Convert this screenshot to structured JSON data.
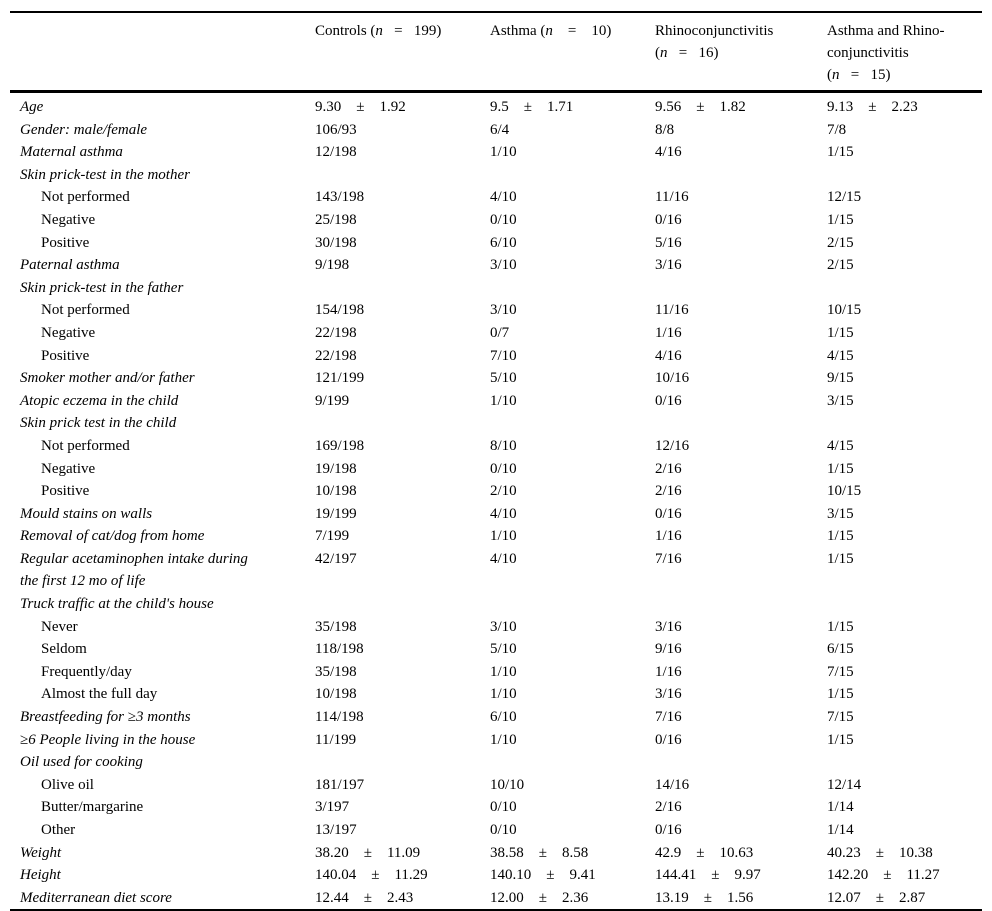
{
  "page": {
    "background_color": "#ffffff",
    "text_color": "#000000"
  },
  "table": {
    "pm_symbol": "±",
    "corner_label": "",
    "columns": [
      {
        "id": "controls",
        "lines": [
          "Controls (n   =   199)"
        ]
      },
      {
        "id": "asthma",
        "lines": [
          "Asthma (n    =    10)"
        ]
      },
      {
        "id": "rhinoconjunctivitis",
        "lines": [
          "Rhinoconjunctivitis",
          "(n   =   16)"
        ]
      },
      {
        "id": "asthma-and-rhinoconjunctivitis",
        "lines": [
          "Asthma and Rhino-",
          "conjunctivitis",
          "(n   =   15)"
        ]
      }
    ],
    "rows": [
      {
        "type": "data",
        "italic": true,
        "indent": false,
        "label": "Age",
        "cells": [
          {
            "m": "9.30",
            "s": "1.92"
          },
          {
            "m": "9.5",
            "s": "1.71"
          },
          {
            "m": "9.56",
            "s": "1.82"
          },
          {
            "m": "9.13",
            "s": "2.23"
          }
        ]
      },
      {
        "type": "data",
        "italic": true,
        "indent": false,
        "label": "Gender: male/female",
        "cells": [
          "106/93",
          "6/4",
          "8/8",
          "7/8"
        ]
      },
      {
        "type": "data",
        "italic": true,
        "indent": false,
        "label": "Maternal asthma",
        "cells": [
          "12/198",
          "1/10",
          "4/16",
          "1/15"
        ]
      },
      {
        "type": "section",
        "italic": true,
        "indent": false,
        "label": "Skin prick-test in the mother"
      },
      {
        "type": "data",
        "italic": false,
        "indent": true,
        "label": "Not performed",
        "cells": [
          "143/198",
          "4/10",
          "11/16",
          "12/15"
        ]
      },
      {
        "type": "data",
        "italic": false,
        "indent": true,
        "label": "Negative",
        "cells": [
          "25/198",
          "0/10",
          "0/16",
          "1/15"
        ]
      },
      {
        "type": "data",
        "italic": false,
        "indent": true,
        "label": "Positive",
        "cells": [
          "30/198",
          "6/10",
          "5/16",
          "2/15"
        ]
      },
      {
        "type": "data",
        "italic": true,
        "indent": false,
        "label": "Paternal asthma",
        "cells": [
          "9/198",
          "3/10",
          "3/16",
          "2/15"
        ]
      },
      {
        "type": "section",
        "italic": true,
        "indent": false,
        "label": "Skin prick-test in the father"
      },
      {
        "type": "data",
        "italic": false,
        "indent": true,
        "label": "Not performed",
        "cells": [
          "154/198",
          "3/10",
          "11/16",
          "10/15"
        ]
      },
      {
        "type": "data",
        "italic": false,
        "indent": true,
        "label": "Negative",
        "cells": [
          "22/198",
          "0/7",
          "1/16",
          "1/15"
        ]
      },
      {
        "type": "data",
        "italic": false,
        "indent": true,
        "label": "Positive",
        "cells": [
          "22/198",
          "7/10",
          "4/16",
          "4/15"
        ]
      },
      {
        "type": "data",
        "italic": true,
        "indent": false,
        "label": "Smoker mother and/or father",
        "cells": [
          "121/199",
          "5/10",
          "10/16",
          "9/15"
        ]
      },
      {
        "type": "data",
        "italic": true,
        "indent": false,
        "label": "Atopic eczema in the child",
        "cells": [
          "9/199",
          "1/10",
          "0/16",
          "3/15"
        ]
      },
      {
        "type": "section",
        "italic": true,
        "indent": false,
        "label": "Skin prick test in the child"
      },
      {
        "type": "data",
        "italic": false,
        "indent": true,
        "label": "Not performed",
        "cells": [
          "169/198",
          "8/10",
          "12/16",
          "4/15"
        ]
      },
      {
        "type": "data",
        "italic": false,
        "indent": true,
        "label": "Negative",
        "cells": [
          "19/198",
          "0/10",
          "2/16",
          "1/15"
        ]
      },
      {
        "type": "data",
        "italic": false,
        "indent": true,
        "label": "Positive",
        "cells": [
          "10/198",
          "2/10",
          "2/16",
          "10/15"
        ]
      },
      {
        "type": "data",
        "italic": true,
        "indent": false,
        "label": "Mould stains on walls",
        "cells": [
          "19/199",
          "4/10",
          "0/16",
          "3/15"
        ]
      },
      {
        "type": "data",
        "italic": true,
        "indent": false,
        "label": "Removal of cat/dog from home",
        "cells": [
          "7/199",
          "1/10",
          "1/16",
          "1/15"
        ]
      },
      {
        "type": "data",
        "italic": true,
        "indent": false,
        "label": "Regular acetaminophen intake during",
        "label2": "the first 12 mo of life",
        "cells": [
          "42/197",
          "4/10",
          "7/16",
          "1/15"
        ]
      },
      {
        "type": "section",
        "italic": true,
        "indent": false,
        "label": "Truck traffic at the child's house"
      },
      {
        "type": "data",
        "italic": false,
        "indent": true,
        "label": "Never",
        "cells": [
          "35/198",
          "3/10",
          "3/16",
          "1/15"
        ]
      },
      {
        "type": "data",
        "italic": false,
        "indent": true,
        "label": "Seldom",
        "cells": [
          "118/198",
          "5/10",
          "9/16",
          "6/15"
        ]
      },
      {
        "type": "data",
        "italic": false,
        "indent": true,
        "label": "Frequently/day",
        "cells": [
          "35/198",
          "1/10",
          "1/16",
          "7/15"
        ]
      },
      {
        "type": "data",
        "italic": false,
        "indent": true,
        "label": "Almost the full day",
        "cells": [
          "10/198",
          "1/10",
          "3/16",
          "1/15"
        ]
      },
      {
        "type": "data",
        "italic": true,
        "indent": false,
        "label": "Breastfeeding for ≥3 months",
        "cells": [
          "114/198",
          "6/10",
          "7/16",
          "7/15"
        ]
      },
      {
        "type": "data",
        "italic": true,
        "indent": false,
        "label": "≥6 People living in the house",
        "cells": [
          "11/199",
          "1/10",
          "0/16",
          "1/15"
        ]
      },
      {
        "type": "section",
        "italic": true,
        "indent": false,
        "label": "Oil used for cooking"
      },
      {
        "type": "data",
        "italic": false,
        "indent": true,
        "label": "Olive oil",
        "cells": [
          "181/197",
          "10/10",
          "14/16",
          "12/14"
        ]
      },
      {
        "type": "data",
        "italic": false,
        "indent": true,
        "label": "Butter/margarine",
        "cells": [
          "3/197",
          "0/10",
          "2/16",
          "1/14"
        ]
      },
      {
        "type": "data",
        "italic": false,
        "indent": true,
        "label": "Other",
        "cells": [
          "13/197",
          "0/10",
          "0/16",
          "1/14"
        ]
      },
      {
        "type": "data",
        "italic": true,
        "indent": false,
        "label": "Weight",
        "cells": [
          {
            "m": "38.20",
            "s": "11.09"
          },
          {
            "m": "38.58",
            "s": "8.58"
          },
          {
            "m": "42.9",
            "s": "10.63"
          },
          {
            "m": "40.23",
            "s": "10.38"
          }
        ]
      },
      {
        "type": "data",
        "italic": true,
        "indent": false,
        "label": "Height",
        "cells": [
          {
            "m": "140.04",
            "s": "11.29"
          },
          {
            "m": "140.10",
            "s": "9.41"
          },
          {
            "m": "144.41",
            "s": "9.97"
          },
          {
            "m": "142.20",
            "s": "11.27"
          }
        ]
      },
      {
        "type": "data",
        "italic": true,
        "indent": false,
        "label": "Mediterranean diet score",
        "cells": [
          {
            "m": "12.44",
            "s": "2.43"
          },
          {
            "m": "12.00",
            "s": "2.36"
          },
          {
            "m": "13.19",
            "s": "1.56"
          },
          {
            "m": "12.07",
            "s": "2.87"
          }
        ]
      }
    ]
  }
}
